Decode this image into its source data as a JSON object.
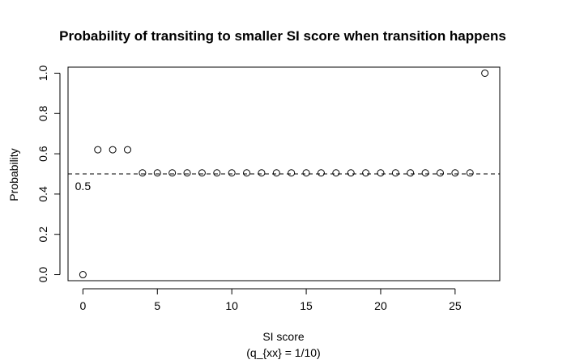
{
  "chart_data": {
    "type": "scatter",
    "title": "Probability of transiting to smaller SI score when transition happens",
    "xlabel": "SI score",
    "xlabel_sub": "(q_{xx} = 1/10)",
    "ylabel": "Probability",
    "xlim": [
      -1,
      28
    ],
    "ylim": [
      -0.03,
      1.03
    ],
    "x_ticks": [
      0,
      5,
      10,
      15,
      20,
      25
    ],
    "x_tick_labels": [
      "0",
      "5",
      "10",
      "15",
      "20",
      "25"
    ],
    "y_ticks": [
      0.0,
      0.2,
      0.4,
      0.6,
      0.8,
      1.0
    ],
    "y_tick_labels": [
      "0.0",
      "0.2",
      "0.4",
      "0.6",
      "0.8",
      "1.0"
    ],
    "grid": false,
    "reference_line": {
      "y": 0.5,
      "style": "dashed",
      "label": "0.5"
    },
    "points": {
      "x": [
        0,
        1,
        2,
        3,
        4,
        5,
        6,
        7,
        8,
        9,
        10,
        11,
        12,
        13,
        14,
        15,
        16,
        17,
        18,
        19,
        20,
        21,
        22,
        23,
        24,
        25,
        26,
        27
      ],
      "y": [
        0.0,
        0.62,
        0.62,
        0.62,
        0.505,
        0.505,
        0.505,
        0.505,
        0.505,
        0.505,
        0.505,
        0.505,
        0.505,
        0.505,
        0.505,
        0.505,
        0.505,
        0.505,
        0.505,
        0.505,
        0.505,
        0.505,
        0.505,
        0.505,
        0.505,
        0.505,
        0.505,
        1.0
      ]
    },
    "marker": "open-circle"
  }
}
